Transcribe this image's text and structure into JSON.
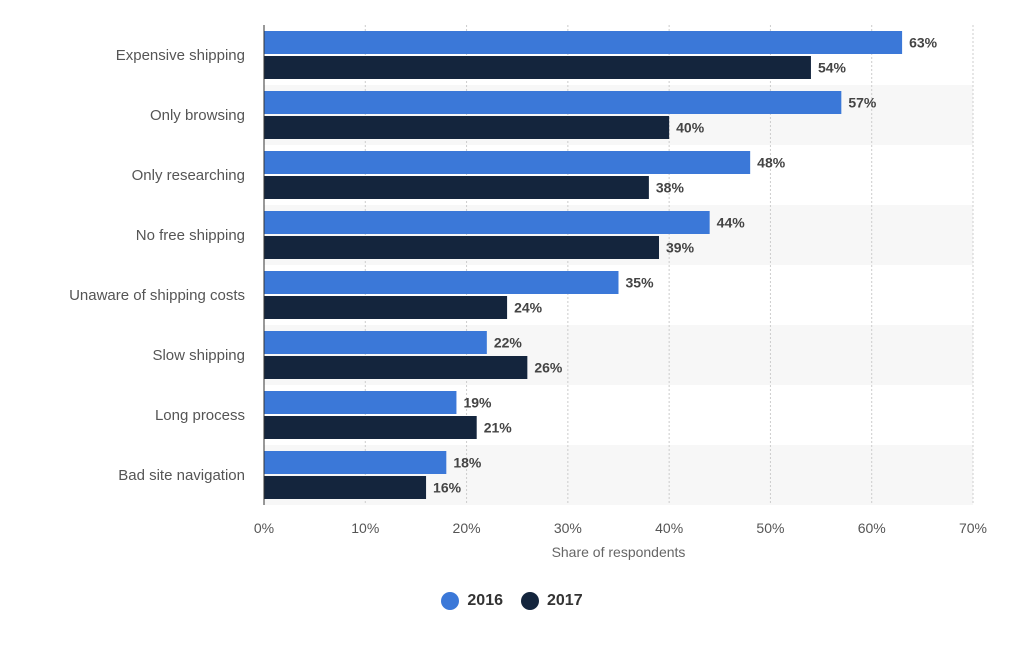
{
  "chart_data": {
    "type": "bar",
    "orientation": "horizontal",
    "categories": [
      "Expensive shipping",
      "Only browsing",
      "Only researching",
      "No free shipping",
      "Unaware of shipping costs",
      "Slow shipping",
      "Long process",
      "Bad site navigation"
    ],
    "series": [
      {
        "name": "2016",
        "color": "#3b78d8",
        "values": [
          63,
          57,
          48,
          44,
          35,
          22,
          19,
          18
        ]
      },
      {
        "name": "2017",
        "color": "#14253d",
        "values": [
          54,
          40,
          38,
          39,
          24,
          26,
          21,
          16
        ]
      }
    ],
    "value_suffix": "%",
    "xlabel": "Share of respondents",
    "ylabel": "",
    "xlim": [
      0,
      70
    ],
    "xticks": [
      0,
      10,
      20,
      30,
      40,
      50,
      60,
      70
    ],
    "xtick_labels": [
      "0%",
      "10%",
      "20%",
      "30%",
      "40%",
      "50%",
      "60%",
      "70%"
    ],
    "grid": true,
    "legend_position": "bottom-center"
  }
}
